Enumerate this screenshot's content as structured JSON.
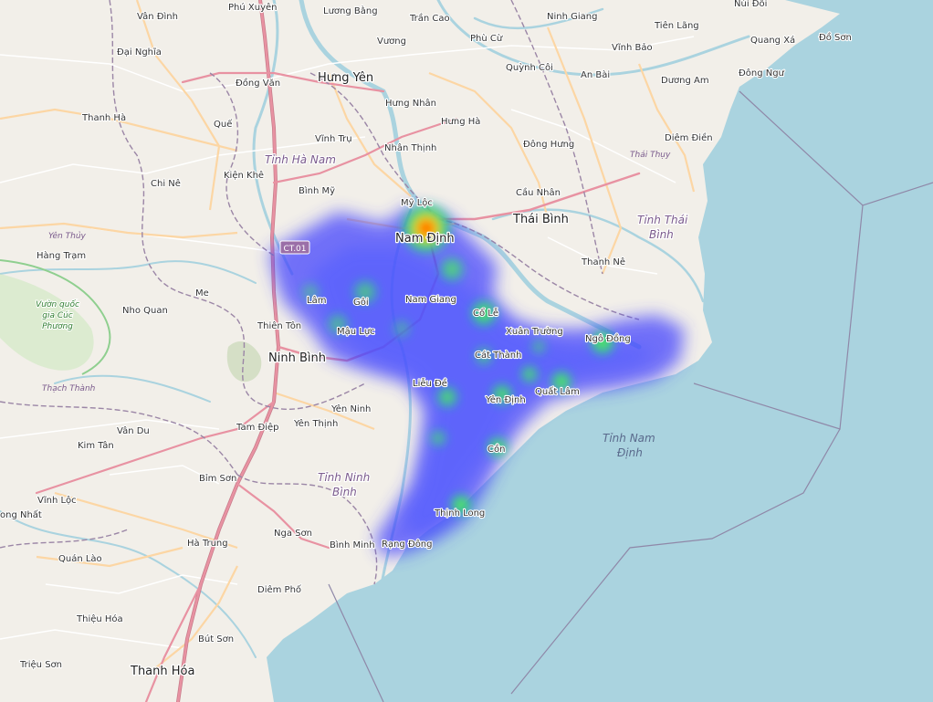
{
  "map": {
    "colors": {
      "land": "#f2efe9",
      "sea": "#aad3df",
      "river": "#aad3df",
      "major_road": "#e892a2",
      "secondary_road": "#fcd6a4",
      "minor_road": "#ffffff",
      "boundary": "#9b86a6",
      "heat_low": "#3b3bff",
      "heat_mid": "#22e07a",
      "heat_high": "#ff2200"
    },
    "labels": [
      {
        "id": "van-dinh",
        "text": "Vân Đình"
      },
      {
        "id": "phu-xuyen",
        "text": "Phú Xuyên"
      },
      {
        "id": "luong-bang",
        "text": "Lương Bằng"
      },
      {
        "id": "tran-cao",
        "text": "Trần Cao"
      },
      {
        "id": "ninh-giang",
        "text": "Ninh Giang"
      },
      {
        "id": "tien-lang",
        "text": "Tiên Lãng"
      },
      {
        "id": "nui-doi",
        "text": "Núi Đối"
      },
      {
        "id": "dai-nghia",
        "text": "Đại Nghĩa"
      },
      {
        "id": "vuong",
        "text": "Vương"
      },
      {
        "id": "phu-cu",
        "text": "Phù Cừ"
      },
      {
        "id": "vinh-bao",
        "text": "Vĩnh Bảo"
      },
      {
        "id": "quang-xa",
        "text": "Quang Xá"
      },
      {
        "id": "do-son",
        "text": "Đồ Sơn"
      },
      {
        "id": "quynh-coi",
        "text": "Quỳnh Côi"
      },
      {
        "id": "an-bai",
        "text": "An Bài"
      },
      {
        "id": "dong-ngu",
        "text": "Đông Ngư"
      },
      {
        "id": "dong-van",
        "text": "Đồng Văn"
      },
      {
        "id": "duong-am",
        "text": "Dương Am"
      },
      {
        "id": "hung-nhan",
        "text": "Hưng Nhân"
      },
      {
        "id": "thanh-ha",
        "text": "Thanh Hà"
      },
      {
        "id": "hung-ha",
        "text": "Hưng Hà"
      },
      {
        "id": "que",
        "text": "Quế"
      },
      {
        "id": "vinh-tru",
        "text": "Vĩnh Trụ"
      },
      {
        "id": "diem-dien",
        "text": "Diêm Điền"
      },
      {
        "id": "nhan-thinh",
        "text": "Nhân Thịnh"
      },
      {
        "id": "dong-hung",
        "text": "Đông Hưng"
      },
      {
        "id": "kien-khe",
        "text": "Kiện Khê"
      },
      {
        "id": "chi-ne",
        "text": "Chi Nê"
      },
      {
        "id": "binh-my",
        "text": "Bình Mỹ"
      },
      {
        "id": "cau-nhan",
        "text": "Cầu Nhân"
      },
      {
        "id": "my-loc",
        "text": "Mỹ Lộc"
      },
      {
        "id": "hang-tram",
        "text": "Hàng Trạm"
      },
      {
        "id": "thanh-ne",
        "text": "Thanh Nê"
      },
      {
        "id": "me",
        "text": "Me"
      },
      {
        "id": "nho-quan",
        "text": "Nho Quan"
      },
      {
        "id": "thien-ton",
        "text": "Thiên Tôn"
      },
      {
        "id": "lam",
        "text": "Lâm"
      },
      {
        "id": "goi",
        "text": "Gôi"
      },
      {
        "id": "nam-giang",
        "text": "Nam Giang"
      },
      {
        "id": "co-le",
        "text": "Cổ Lễ"
      },
      {
        "id": "xuan-truong",
        "text": "Xuân Trường"
      },
      {
        "id": "mau-luc",
        "text": "Mậu Lực"
      },
      {
        "id": "ngo-dong",
        "text": "Ngô Đồng"
      },
      {
        "id": "cat-thanh",
        "text": "Cát Thành"
      },
      {
        "id": "lieu-de",
        "text": "Liễu Đề"
      },
      {
        "id": "yen-ninh",
        "text": "Yên Ninh"
      },
      {
        "id": "yen-dinh",
        "text": "Yên Định"
      },
      {
        "id": "quat-lam",
        "text": "Quất Lâm"
      },
      {
        "id": "tam-diep",
        "text": "Tam Điệp"
      },
      {
        "id": "yen-thinh",
        "text": "Yên Thịnh"
      },
      {
        "id": "van-du",
        "text": "Vân Du"
      },
      {
        "id": "kim-tan",
        "text": "Kim Tân"
      },
      {
        "id": "con",
        "text": "Cồn"
      },
      {
        "id": "bim-son",
        "text": "Bỉm Sơn"
      },
      {
        "id": "vinh-loc",
        "text": "Vĩnh Lộc"
      },
      {
        "id": "nga-son",
        "text": "Nga Sơn"
      },
      {
        "id": "thinh-long",
        "text": "Thịnh Long"
      },
      {
        "id": "ong-nhat",
        "text": "ong Nhất"
      },
      {
        "id": "binh-minh",
        "text": "Bình Minh"
      },
      {
        "id": "rang-dong",
        "text": "Rạng Đông"
      },
      {
        "id": "quan-lao",
        "text": "Quán Lào"
      },
      {
        "id": "ha-trung",
        "text": "Hà Trung"
      },
      {
        "id": "diem-pho",
        "text": "Diêm Phố"
      },
      {
        "id": "thieu-hoa",
        "text": "Thiệu Hóa"
      },
      {
        "id": "but-son",
        "text": "Bút Sơn"
      },
      {
        "id": "trieu-son",
        "text": "Triệu Sơn"
      },
      {
        "id": "yen-thuy",
        "text": "Yên Thủy"
      },
      {
        "id": "thach-thanh",
        "text": "Thạch Thành"
      },
      {
        "id": "thai-thuy",
        "text": "Thái Thụy"
      }
    ],
    "cities": [
      {
        "id": "hung-yen",
        "text": "Hưng Yên"
      },
      {
        "id": "thai-binh",
        "text": "Thái Bình"
      },
      {
        "id": "nam-dinh",
        "text": "Nam Định"
      },
      {
        "id": "ninh-binh",
        "text": "Ninh Bình"
      },
      {
        "id": "thanh-hoa",
        "text": "Thanh Hóa"
      }
    ],
    "provinces": [
      {
        "id": "tinh-ha-nam",
        "text": "Tỉnh Hà Nam"
      },
      {
        "id": "tinh-thai-binh-1",
        "text": "Tỉnh Thái"
      },
      {
        "id": "tinh-thai-binh-2",
        "text": "Bình"
      },
      {
        "id": "tinh-ninh-binh-1",
        "text": "Tỉnh Ninh"
      },
      {
        "id": "tinh-ninh-binh-2",
        "text": "Bình"
      },
      {
        "id": "tinh-nam-dinh-1",
        "text": "Tỉnh Nam"
      },
      {
        "id": "tinh-nam-dinh-2",
        "text": "Định"
      }
    ],
    "park": {
      "line1": "Vườn quốc",
      "line2": "gia Cúc",
      "line3": "Phương"
    },
    "road_shield": {
      "text": "CT.01"
    },
    "hotspots": [
      {
        "name": "Nam Định",
        "intensity": 1.0
      },
      {
        "name": "Thịnh Long",
        "intensity": 0.55
      },
      {
        "name": "Ngô Đồng",
        "intensity": 0.55
      },
      {
        "name": "Cổ Lễ",
        "intensity": 0.5
      },
      {
        "name": "Quất Lâm",
        "intensity": 0.5
      },
      {
        "name": "Yên Định",
        "intensity": 0.45
      },
      {
        "name": "Cồn",
        "intensity": 0.45
      }
    ]
  }
}
